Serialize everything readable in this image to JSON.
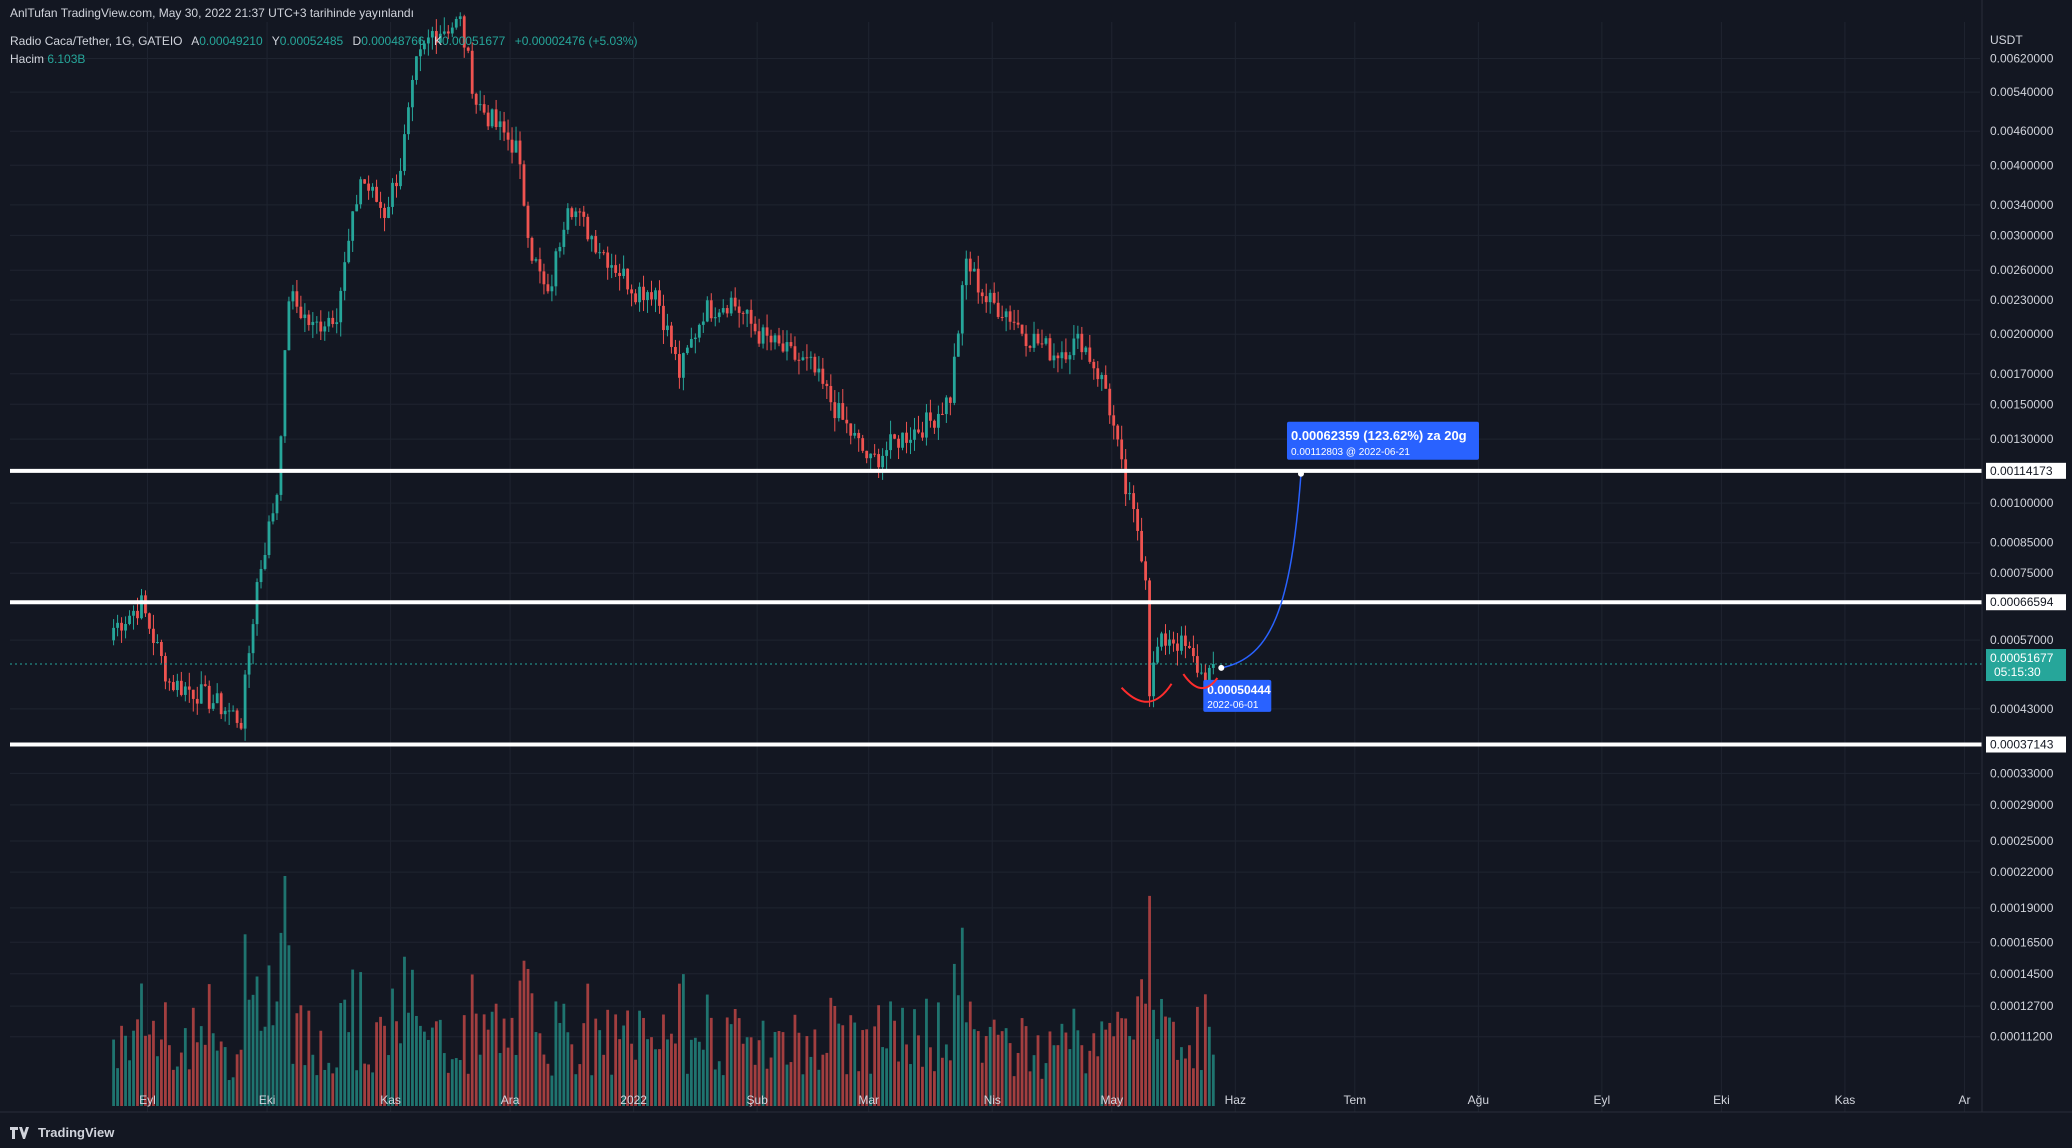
{
  "header": {
    "published": "AnlTufan TradingView.com, May 30, 2022 21:37 UTC+3 tarihinde yayınlandı",
    "symbol": "Radio Caca/Tether, 1G, GATEIO",
    "ohlc": [
      {
        "k": "A",
        "v": "0.00049210"
      },
      {
        "k": "Y",
        "v": "0.00052485"
      },
      {
        "k": "D",
        "v": "0.00048766"
      },
      {
        "k": "K",
        "v": "0.00051677"
      }
    ],
    "change": "+0.00002476 (+5.03%)",
    "volume_label": "Hacim",
    "volume_value": "6.103B"
  },
  "footer": {
    "brand": "TradingView"
  },
  "colors": {
    "background": "#131722",
    "grid": "#1f2430",
    "up": "#26a69a",
    "down": "#ef5350",
    "level_line": "#ffffff",
    "projection": "#2962ff",
    "label_bg": "#2962ff",
    "arc": "#ff2d2d"
  },
  "chart_data": {
    "type": "candlestick",
    "currency": "USDT",
    "y_scale": "log",
    "ylim": [
      9e-05,
      0.0072
    ],
    "y_ticks": [
      "0.00620000",
      "0.00540000",
      "0.00460000",
      "0.00400000",
      "0.00340000",
      "0.00300000",
      "0.00260000",
      "0.00230000",
      "0.00200000",
      "0.00170000",
      "0.00150000",
      "0.00130000",
      "0.00100000",
      "0.00085000",
      "0.00075000",
      "0.00057000",
      "0.00043000",
      "0.00033000",
      "0.00029000",
      "0.00025000",
      "0.00022000",
      "0.00019000",
      "0.00016500",
      "0.00014500",
      "0.00012700",
      "0.00011200"
    ],
    "x_ticks": [
      "Eyl",
      "Eki",
      "Kas",
      "Ara",
      "2022",
      "Şub",
      "Mar",
      "Nis",
      "May",
      "Haz",
      "Tem",
      "Ağu",
      "Eyl",
      "Eki",
      "Kas",
      "Ar"
    ],
    "x_tick_dates": [
      "2021-09-01",
      "2021-10-01",
      "2021-11-01",
      "2021-12-01",
      "2022-01-01",
      "2022-02-01",
      "2022-03-01",
      "2022-04-01",
      "2022-05-01",
      "2022-06-01",
      "2022-07-01",
      "2022-08-01",
      "2022-09-01",
      "2022-10-01",
      "2022-11-01",
      "2022-12-01"
    ],
    "price_path": [
      [
        "2021-08-27",
        0.0006
      ],
      [
        "2021-09-03",
        0.00066
      ],
      [
        "2021-09-10",
        0.00048
      ],
      [
        "2021-09-17",
        0.00046
      ],
      [
        "2021-09-24",
        0.00043
      ],
      [
        "2021-09-28",
        0.00041
      ],
      [
        "2021-10-02",
        0.00072
      ],
      [
        "2021-10-07",
        0.00105
      ],
      [
        "2021-10-10",
        0.00235
      ],
      [
        "2021-10-16",
        0.00205
      ],
      [
        "2021-10-22",
        0.0022
      ],
      [
        "2021-10-28",
        0.0038
      ],
      [
        "2021-11-03",
        0.0033
      ],
      [
        "2021-11-07",
        0.004
      ],
      [
        "2021-11-11",
        0.006
      ],
      [
        "2021-11-15",
        0.0069
      ],
      [
        "2021-11-22",
        0.0072
      ],
      [
        "2021-11-26",
        0.0052
      ],
      [
        "2021-12-01",
        0.0047
      ],
      [
        "2021-12-06",
        0.0043
      ],
      [
        "2021-12-10",
        0.0028
      ],
      [
        "2021-12-14",
        0.0023
      ],
      [
        "2021-12-19",
        0.0035
      ],
      [
        "2021-12-22",
        0.0032
      ],
      [
        "2021-12-28",
        0.0028
      ],
      [
        "2022-01-05",
        0.0024
      ],
      [
        "2022-01-10",
        0.0024
      ],
      [
        "2022-01-16",
        0.0017
      ],
      [
        "2022-01-22",
        0.0022
      ],
      [
        "2022-01-29",
        0.0023
      ],
      [
        "2022-02-05",
        0.002
      ],
      [
        "2022-02-12",
        0.00185
      ],
      [
        "2022-02-18",
        0.00175
      ],
      [
        "2022-02-26",
        0.0014
      ],
      [
        "2022-03-05",
        0.00118
      ],
      [
        "2022-03-12",
        0.0013
      ],
      [
        "2022-03-20",
        0.0014
      ],
      [
        "2022-03-25",
        0.00155
      ],
      [
        "2022-03-29",
        0.0027
      ],
      [
        "2022-04-03",
        0.0023
      ],
      [
        "2022-04-08",
        0.0022
      ],
      [
        "2022-04-13",
        0.002
      ],
      [
        "2022-04-20",
        0.00185
      ],
      [
        "2022-04-27",
        0.00195
      ],
      [
        "2022-05-03",
        0.0016
      ],
      [
        "2022-05-06",
        0.00125
      ],
      [
        "2022-05-08",
        0.00105
      ],
      [
        "2022-05-11",
        0.0009
      ],
      [
        "2022-05-13",
        0.00075
      ],
      [
        "2022-05-14",
        0.00047
      ],
      [
        "2022-05-16",
        0.00055
      ],
      [
        "2022-05-19",
        0.00058
      ],
      [
        "2022-05-23",
        0.00055
      ],
      [
        "2022-05-26",
        0.00051
      ],
      [
        "2022-05-28",
        0.00048
      ],
      [
        "2022-05-30",
        0.000517
      ]
    ],
    "last_close": 0.00051677,
    "last_price_label": "0.00051677",
    "countdown": "05:15:30",
    "horizontal_levels": [
      {
        "value": 0.00114173,
        "label": "0.00114173"
      },
      {
        "value": 0.00066594,
        "label": "0.00066594"
      },
      {
        "value": 0.00037143,
        "label": "0.00037143"
      }
    ],
    "projection": {
      "start": {
        "date": "2022-06-01",
        "value": 0.00050444,
        "label": "0.00050444",
        "sublabel": "2022-06-01"
      },
      "end": {
        "date": "2022-06-21",
        "value": 0.00112803,
        "label": "0.00062359 (123.62%) za 20g",
        "sublabel": "0.00112803 @ 2022-06-21"
      }
    },
    "volume_scale": "relative",
    "grid": true
  }
}
